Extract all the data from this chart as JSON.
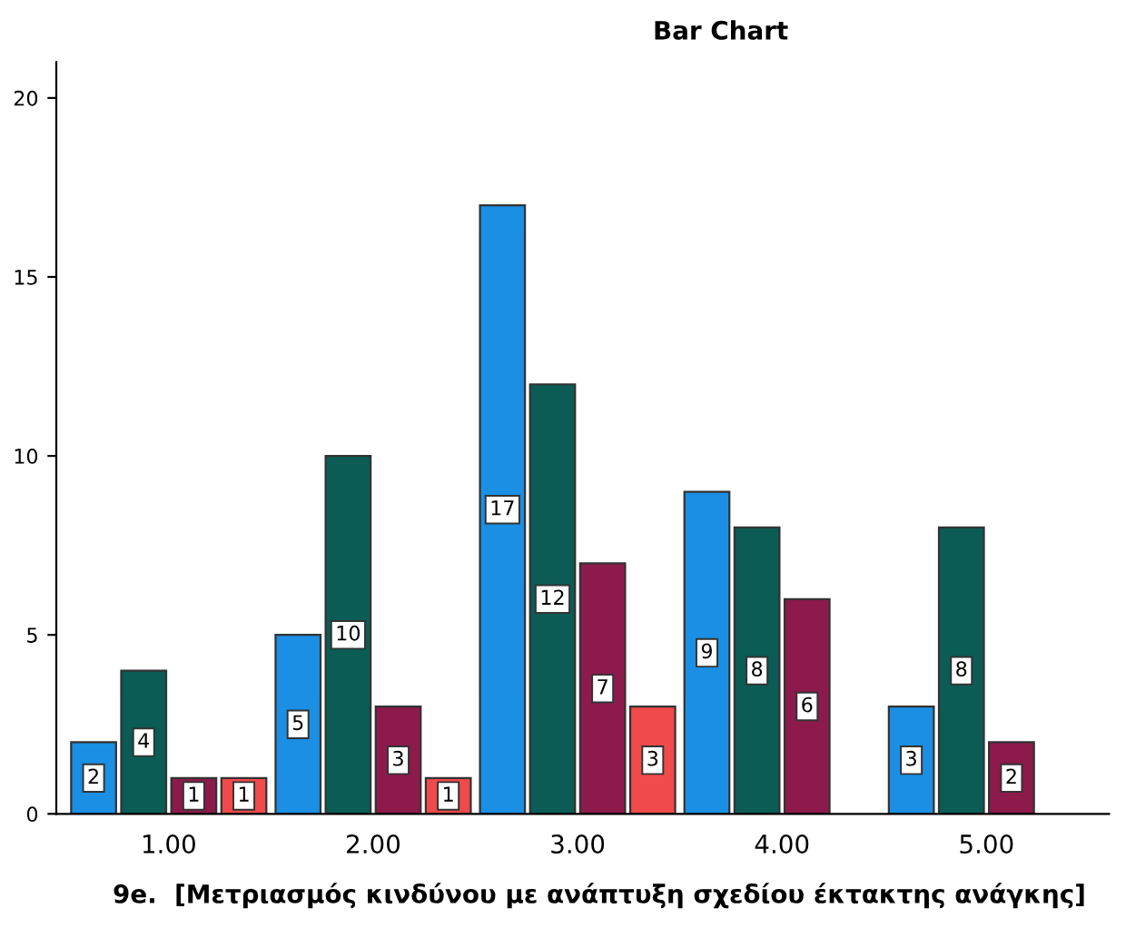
{
  "chart_data": {
    "type": "bar",
    "title": "Bar Chart",
    "xlabel": "9e.  [Μετριασμός κινδύνου με ανάπτυξη σχεδίου έκτακτης ανάγκης]",
    "categories": [
      "1.00",
      "2.00",
      "3.00",
      "4.00",
      "5.00"
    ],
    "series": [
      {
        "color": "#1a8fe3",
        "values": [
          2,
          5,
          17,
          9,
          3
        ]
      },
      {
        "color": "#0a5c55",
        "values": [
          4,
          10,
          12,
          8,
          8
        ]
      },
      {
        "color": "#8c1a4b",
        "values": [
          1,
          3,
          7,
          6,
          2
        ]
      },
      {
        "color": "#f04a4a",
        "values": [
          1,
          1,
          3,
          null,
          null
        ]
      }
    ],
    "ylim": [
      0,
      21
    ],
    "yticks": [
      0,
      5,
      10,
      15,
      20
    ],
    "data_labels": true,
    "grid": false,
    "legend": false
  }
}
